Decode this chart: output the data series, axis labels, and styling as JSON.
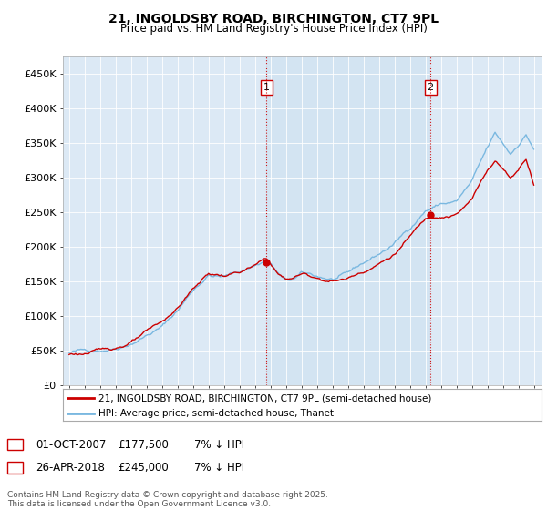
{
  "title": "21, INGOLDSBY ROAD, BIRCHINGTON, CT7 9PL",
  "subtitle": "Price paid vs. HM Land Registry's House Price Index (HPI)",
  "background_color": "#dce9f5",
  "plot_background": "#dce9f5",
  "ylim": [
    0,
    475000
  ],
  "yticks": [
    0,
    50000,
    100000,
    150000,
    200000,
    250000,
    300000,
    350000,
    400000,
    450000
  ],
  "ytick_labels": [
    "£0",
    "£50K",
    "£100K",
    "£150K",
    "£200K",
    "£250K",
    "£300K",
    "£350K",
    "£400K",
    "£450K"
  ],
  "sale1_year": 2007.75,
  "sale1_price": 177500,
  "sale2_year": 2018.33,
  "sale2_price": 245000,
  "hpi_color": "#7ab8e0",
  "price_color": "#cc0000",
  "vline_color": "#cc0000",
  "highlight_color": "#d0e8f5",
  "legend1": "21, INGOLDSBY ROAD, BIRCHINGTON, CT7 9PL (semi-detached house)",
  "legend2": "HPI: Average price, semi-detached house, Thanet",
  "footer": "Contains HM Land Registry data © Crown copyright and database right 2025.\nThis data is licensed under the Open Government Licence v3.0."
}
